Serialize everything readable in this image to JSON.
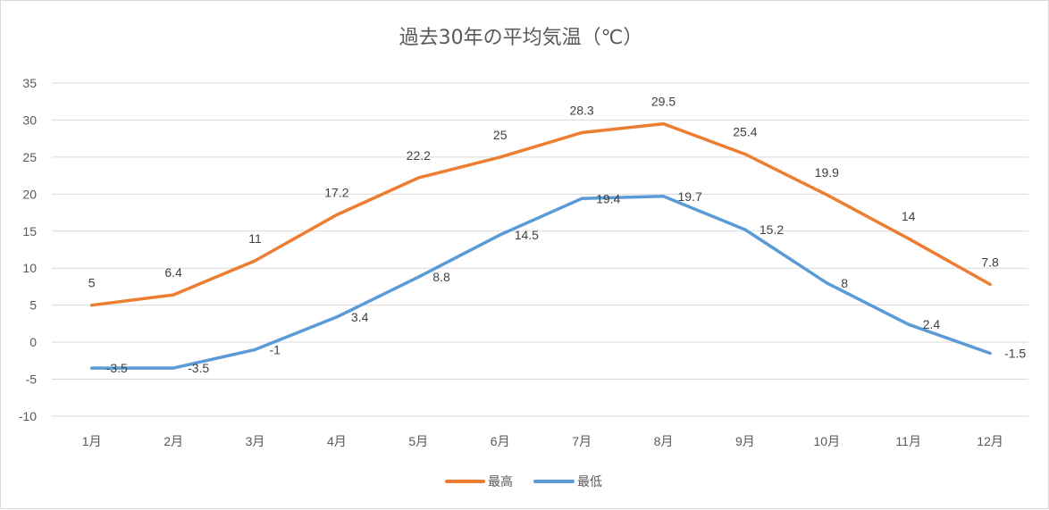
{
  "chart_data": {
    "type": "line",
    "title": "過去30年の平均気温（℃）",
    "xlabel": "",
    "ylabel": "",
    "categories": [
      "1月",
      "2月",
      "3月",
      "4月",
      "5月",
      "6月",
      "7月",
      "8月",
      "9月",
      "10月",
      "11月",
      "12月"
    ],
    "series": [
      {
        "name": "最高",
        "color": "#ED7D31",
        "values": [
          5,
          6.4,
          11,
          17.2,
          22.2,
          25,
          28.3,
          29.5,
          25.4,
          19.9,
          14,
          7.8
        ]
      },
      {
        "name": "最低",
        "color": "#5B9BD5",
        "values": [
          -3.5,
          -3.5,
          -1,
          3.4,
          8.8,
          14.5,
          19.4,
          19.7,
          15.2,
          8,
          2.4,
          -1.5
        ]
      }
    ],
    "ylim": [
      -10,
      35
    ],
    "yticks": [
      35,
      30,
      25,
      20,
      15,
      10,
      5,
      0,
      -5,
      -10
    ],
    "grid": true,
    "legend": "bottom"
  }
}
